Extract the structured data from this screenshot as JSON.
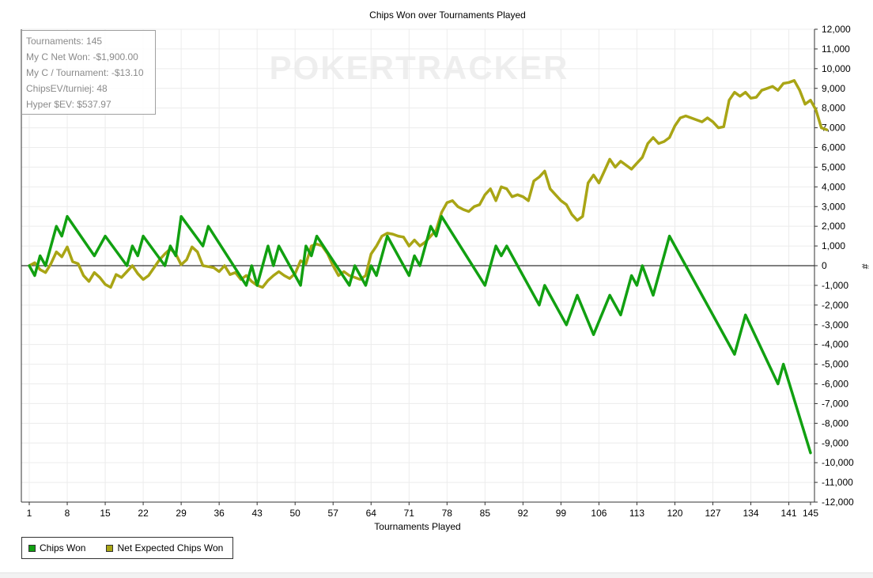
{
  "chart_data": {
    "type": "line",
    "title": "Chips Won over Tournaments Played",
    "xlabel": "Tournaments Played",
    "ylabel": "#",
    "xlim": [
      1,
      145
    ],
    "ylim": [
      -12000,
      12000
    ],
    "x_ticks": [
      "1",
      "8",
      "15",
      "22",
      "29",
      "36",
      "43",
      "50",
      "57",
      "64",
      "71",
      "78",
      "85",
      "92",
      "99",
      "106",
      "113",
      "120",
      "127",
      "134",
      "141",
      "145"
    ],
    "y_ticks": [
      "12,000",
      "11,000",
      "10,000",
      "9,000",
      "8,000",
      "7,000",
      "6,000",
      "5,000",
      "4,000",
      "3,000",
      "2,000",
      "1,000",
      "0",
      "-1,000",
      "-2,000",
      "-3,000",
      "-4,000",
      "-5,000",
      "-6,000",
      "-7,000",
      "-8,000",
      "-9,000",
      "-10,000",
      "-11,000",
      "-12,000"
    ],
    "grid": true,
    "legend_position": "bottom-left",
    "watermark": "POKERTRACKER",
    "series": [
      {
        "name": "Chips Won",
        "color": "#11a011",
        "points": [
          [
            1,
            0
          ],
          [
            2,
            -500
          ],
          [
            3,
            500
          ],
          [
            4,
            0
          ],
          [
            6,
            2000
          ],
          [
            7,
            1500
          ],
          [
            8,
            2500
          ],
          [
            13,
            500
          ],
          [
            15,
            1500
          ],
          [
            19,
            0
          ],
          [
            20,
            1000
          ],
          [
            21,
            500
          ],
          [
            22,
            1500
          ],
          [
            26,
            0
          ],
          [
            27,
            1000
          ],
          [
            28,
            500
          ],
          [
            29,
            2500
          ],
          [
            33,
            1000
          ],
          [
            34,
            2000
          ],
          [
            41,
            -1000
          ],
          [
            42,
            0
          ],
          [
            43,
            -1000
          ],
          [
            45,
            1000
          ],
          [
            46,
            0
          ],
          [
            47,
            1000
          ],
          [
            51,
            -1000
          ],
          [
            52,
            1000
          ],
          [
            53,
            500
          ],
          [
            54,
            1500
          ],
          [
            60,
            -1000
          ],
          [
            61,
            0
          ],
          [
            63,
            -1000
          ],
          [
            64,
            0
          ],
          [
            65,
            -500
          ],
          [
            67,
            1500
          ],
          [
            71,
            -500
          ],
          [
            72,
            500
          ],
          [
            73,
            0
          ],
          [
            75,
            2000
          ],
          [
            76,
            1500
          ],
          [
            77,
            2500
          ],
          [
            85,
            -1000
          ],
          [
            87,
            1000
          ],
          [
            88,
            500
          ],
          [
            89,
            1000
          ],
          [
            95,
            -2000
          ],
          [
            96,
            -1000
          ],
          [
            100,
            -3000
          ],
          [
            102,
            -1500
          ],
          [
            105,
            -3500
          ],
          [
            108,
            -1500
          ],
          [
            110,
            -2500
          ],
          [
            112,
            -500
          ],
          [
            113,
            -1000
          ],
          [
            114,
            0
          ],
          [
            116,
            -1500
          ],
          [
            119,
            1500
          ],
          [
            131,
            -4500
          ],
          [
            133,
            -2500
          ],
          [
            139,
            -6000
          ],
          [
            140,
            -5000
          ],
          [
            145,
            -9500
          ]
        ]
      },
      {
        "name": "Net Expected Chips Won",
        "color": "#a9a515",
        "points": [
          [
            1,
            0
          ],
          [
            2,
            150
          ],
          [
            3,
            -200
          ],
          [
            4,
            -350
          ],
          [
            5,
            100
          ],
          [
            6,
            700
          ],
          [
            7,
            450
          ],
          [
            8,
            950
          ],
          [
            9,
            200
          ],
          [
            10,
            100
          ],
          [
            11,
            -500
          ],
          [
            12,
            -800
          ],
          [
            13,
            -350
          ],
          [
            14,
            -600
          ],
          [
            15,
            -950
          ],
          [
            16,
            -1100
          ],
          [
            17,
            -450
          ],
          [
            18,
            -600
          ],
          [
            19,
            -300
          ],
          [
            20,
            0
          ],
          [
            21,
            -400
          ],
          [
            22,
            -700
          ],
          [
            23,
            -500
          ],
          [
            24,
            -100
          ],
          [
            25,
            300
          ],
          [
            26,
            600
          ],
          [
            27,
            850
          ],
          [
            28,
            600
          ],
          [
            29,
            50
          ],
          [
            30,
            300
          ],
          [
            31,
            950
          ],
          [
            32,
            700
          ],
          [
            33,
            0
          ],
          [
            34,
            -50
          ],
          [
            35,
            -100
          ],
          [
            36,
            -300
          ],
          [
            37,
            0
          ],
          [
            38,
            -450
          ],
          [
            39,
            -350
          ],
          [
            40,
            -700
          ],
          [
            41,
            -500
          ],
          [
            42,
            -800
          ],
          [
            43,
            -1000
          ],
          [
            44,
            -1100
          ],
          [
            45,
            -750
          ],
          [
            46,
            -500
          ],
          [
            47,
            -300
          ],
          [
            48,
            -500
          ],
          [
            49,
            -650
          ],
          [
            50,
            -400
          ],
          [
            51,
            250
          ],
          [
            52,
            100
          ],
          [
            53,
            1000
          ],
          [
            54,
            1100
          ],
          [
            55,
            1000
          ],
          [
            56,
            600
          ],
          [
            57,
            0
          ],
          [
            58,
            -500
          ],
          [
            59,
            -300
          ],
          [
            60,
            -500
          ],
          [
            61,
            -600
          ],
          [
            62,
            -700
          ],
          [
            63,
            -500
          ],
          [
            64,
            600
          ],
          [
            65,
            1000
          ],
          [
            66,
            1500
          ],
          [
            67,
            1650
          ],
          [
            68,
            1600
          ],
          [
            69,
            1500
          ],
          [
            70,
            1450
          ],
          [
            71,
            1000
          ],
          [
            72,
            1300
          ],
          [
            73,
            1000
          ],
          [
            74,
            1200
          ],
          [
            75,
            1500
          ],
          [
            76,
            1800
          ],
          [
            77,
            2700
          ],
          [
            78,
            3200
          ],
          [
            79,
            3300
          ],
          [
            80,
            3000
          ],
          [
            81,
            2850
          ],
          [
            82,
            2750
          ],
          [
            83,
            3000
          ],
          [
            84,
            3100
          ],
          [
            85,
            3600
          ],
          [
            86,
            3900
          ],
          [
            87,
            3300
          ],
          [
            88,
            4000
          ],
          [
            89,
            3900
          ],
          [
            90,
            3500
          ],
          [
            91,
            3600
          ],
          [
            92,
            3500
          ],
          [
            93,
            3300
          ],
          [
            94,
            4300
          ],
          [
            95,
            4500
          ],
          [
            96,
            4800
          ],
          [
            97,
            3900
          ],
          [
            98,
            3600
          ],
          [
            99,
            3300
          ],
          [
            100,
            3100
          ],
          [
            101,
            2600
          ],
          [
            102,
            2300
          ],
          [
            103,
            2500
          ],
          [
            104,
            4200
          ],
          [
            105,
            4600
          ],
          [
            106,
            4200
          ],
          [
            107,
            4800
          ],
          [
            108,
            5400
          ],
          [
            109,
            5000
          ],
          [
            110,
            5300
          ],
          [
            111,
            5100
          ],
          [
            112,
            4900
          ],
          [
            113,
            5200
          ],
          [
            114,
            5500
          ],
          [
            115,
            6200
          ],
          [
            116,
            6500
          ],
          [
            117,
            6200
          ],
          [
            118,
            6300
          ],
          [
            119,
            6500
          ],
          [
            120,
            7100
          ],
          [
            121,
            7500
          ],
          [
            122,
            7600
          ],
          [
            123,
            7500
          ],
          [
            124,
            7400
          ],
          [
            125,
            7300
          ],
          [
            126,
            7500
          ],
          [
            127,
            7300
          ],
          [
            128,
            7000
          ],
          [
            129,
            7050
          ],
          [
            130,
            8400
          ],
          [
            131,
            8800
          ],
          [
            132,
            8600
          ],
          [
            133,
            8800
          ],
          [
            134,
            8500
          ],
          [
            135,
            8550
          ],
          [
            136,
            8900
          ],
          [
            137,
            9000
          ],
          [
            138,
            9100
          ],
          [
            139,
            8900
          ],
          [
            140,
            9250
          ],
          [
            141,
            9300
          ],
          [
            142,
            9400
          ],
          [
            143,
            8900
          ],
          [
            144,
            8200
          ],
          [
            145,
            8400
          ],
          [
            146,
            7900
          ],
          [
            147,
            7000
          ],
          [
            148,
            6900
          ]
        ]
      }
    ]
  },
  "stats": {
    "lines": [
      "Tournaments: 145",
      "My C Net Won: -$1,900.00",
      "My C / Tournament: -$13.10",
      "ChipsEV/turniej: 48",
      "Hyper $EV: $537.97"
    ]
  },
  "legend": {
    "items": [
      {
        "label": "Chips Won",
        "color": "#11a011"
      },
      {
        "label": "Net Expected Chips Won",
        "color": "#a9a515"
      }
    ]
  }
}
